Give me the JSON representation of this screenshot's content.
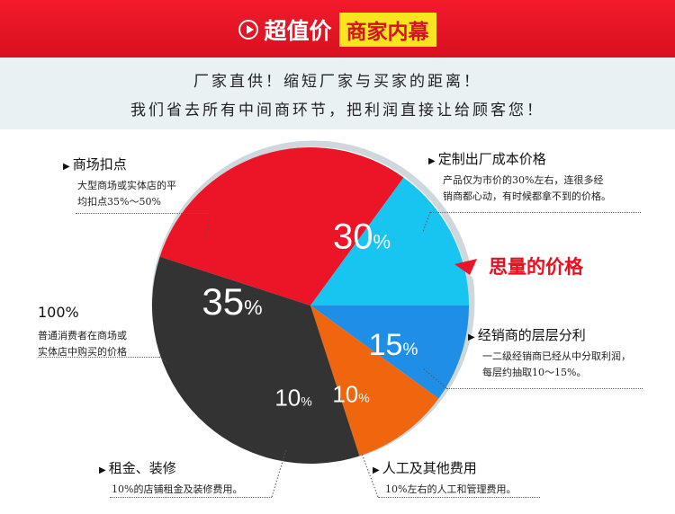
{
  "header": {
    "title": "超值价",
    "highlight": "商家内幕",
    "line1": "厂家直供！缩短厂家与买家的距离！",
    "line2": "我们省去所有中间商环节，把利润直接让给顾客您！"
  },
  "chart_data": {
    "type": "pie",
    "slices": [
      {
        "label": "定制出厂成本价格",
        "value": 30,
        "display": "30",
        "color": "#ec1427"
      },
      {
        "label": "经销商的层层分利",
        "value": 15,
        "display": "15",
        "color": "#18c5f0"
      },
      {
        "label": "人工及其他费用",
        "value": 10,
        "display": "10",
        "color": "#1e8ee6"
      },
      {
        "label": "租金、装修",
        "value": 10,
        "display": "10",
        "color": "#f0660e"
      },
      {
        "label": "商场扣点",
        "value": 35,
        "display": "35",
        "color": "#333333"
      }
    ],
    "percent_sign": "%",
    "ring_color": "#ced7db"
  },
  "annotations": {
    "mall": {
      "title": "商场扣点",
      "body1": "大型商场或实体店的平",
      "body2": "均扣点35%～50%"
    },
    "factory": {
      "title": "定制出厂成本价格",
      "body1": "产品仅为市价的30%左右，连很多经",
      "body2": "销商都心动，有时候都拿不到的价格。"
    },
    "retail": {
      "title": "100%",
      "body1": "普通消费者在商场或",
      "body2": "实体店中购买的价格"
    },
    "dealer": {
      "title": "经销商的层层分利",
      "body1": "一二级经销商已经从中分取利润，",
      "body2": "每层约抽取10～15%。"
    },
    "rent": {
      "title": "租金、装修",
      "body1": "10%的店铺租金及装修费用。"
    },
    "labor": {
      "title": "人工及其他费用",
      "body1": "10%左右的人工和管理费用。"
    }
  },
  "callout": {
    "text": "思量的价格",
    "color": "#e8101f"
  }
}
